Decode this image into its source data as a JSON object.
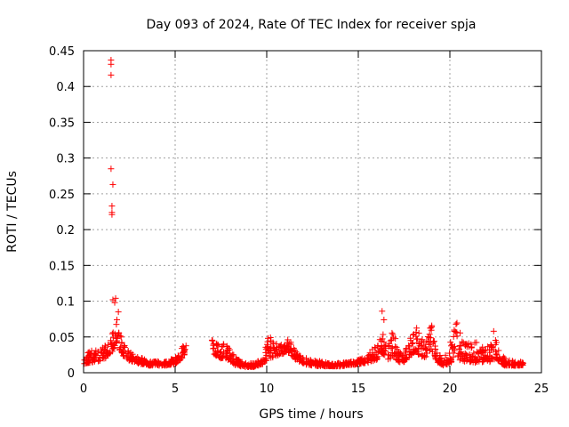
{
  "chart_data": {
    "type": "scatter",
    "title": "Day 093 of 2024, Rate Of TEC Index for receiver spja",
    "xlabel": "GPS time / hours",
    "ylabel": "ROTI / TECUs",
    "xlim": [
      0,
      25
    ],
    "ylim": [
      0,
      0.45
    ],
    "x_ticks": [
      0,
      5,
      10,
      15,
      20,
      25
    ],
    "y_ticks": [
      0,
      0.05,
      0.1,
      0.15,
      0.2,
      0.25,
      0.3,
      0.35,
      0.4,
      0.45
    ],
    "x_tick_labels": [
      "0",
      "5",
      "10",
      "15",
      "20",
      "25"
    ],
    "y_tick_labels": [
      "0",
      "0.05",
      "0.1",
      "0.15",
      "0.2",
      "0.25",
      "0.3",
      "0.35",
      "0.4",
      "0.45"
    ],
    "grid": true,
    "marker": "+",
    "marker_color": "#ff0000",
    "outliers": [
      [
        1.5,
        0.437
      ],
      [
        1.5,
        0.431
      ],
      [
        1.5,
        0.416
      ],
      [
        1.5,
        0.285
      ],
      [
        1.6,
        0.263
      ],
      [
        1.55,
        0.233
      ],
      [
        1.55,
        0.224
      ],
      [
        1.55,
        0.221
      ],
      [
        1.6,
        0.102
      ],
      [
        1.75,
        0.104
      ],
      [
        1.7,
        0.098
      ],
      [
        16.3,
        0.086
      ],
      [
        16.4,
        0.074
      ],
      [
        1.9,
        0.085
      ]
    ],
    "envelope": [
      [
        0.0,
        0.012,
        0.022
      ],
      [
        0.3,
        0.014,
        0.03
      ],
      [
        0.6,
        0.015,
        0.032
      ],
      [
        0.9,
        0.016,
        0.034
      ],
      [
        1.2,
        0.02,
        0.038
      ],
      [
        1.4,
        0.025,
        0.045
      ],
      [
        1.6,
        0.03,
        0.06
      ],
      [
        1.8,
        0.04,
        0.078
      ],
      [
        2.0,
        0.03,
        0.055
      ],
      [
        2.2,
        0.022,
        0.04
      ],
      [
        2.5,
        0.016,
        0.03
      ],
      [
        3.0,
        0.013,
        0.022
      ],
      [
        3.5,
        0.01,
        0.018
      ],
      [
        4.0,
        0.01,
        0.016
      ],
      [
        4.5,
        0.01,
        0.016
      ],
      [
        5.0,
        0.012,
        0.022
      ],
      [
        5.3,
        0.018,
        0.032
      ],
      [
        5.6,
        0.028,
        0.048
      ],
      [
        7.0,
        0.028,
        0.05
      ],
      [
        7.3,
        0.022,
        0.04
      ],
      [
        7.7,
        0.018,
        0.04
      ],
      [
        8.0,
        0.015,
        0.035
      ],
      [
        8.3,
        0.01,
        0.02
      ],
      [
        8.8,
        0.008,
        0.014
      ],
      [
        9.3,
        0.008,
        0.013
      ],
      [
        9.8,
        0.012,
        0.02
      ],
      [
        10.1,
        0.02,
        0.058
      ],
      [
        10.4,
        0.022,
        0.04
      ],
      [
        10.8,
        0.026,
        0.042
      ],
      [
        11.2,
        0.028,
        0.048
      ],
      [
        11.6,
        0.018,
        0.03
      ],
      [
        12.0,
        0.012,
        0.022
      ],
      [
        12.5,
        0.01,
        0.018
      ],
      [
        13.0,
        0.009,
        0.016
      ],
      [
        13.5,
        0.009,
        0.014
      ],
      [
        14.0,
        0.009,
        0.014
      ],
      [
        14.5,
        0.01,
        0.015
      ],
      [
        15.0,
        0.012,
        0.018
      ],
      [
        15.5,
        0.014,
        0.025
      ],
      [
        16.0,
        0.018,
        0.04
      ],
      [
        16.3,
        0.025,
        0.058
      ],
      [
        16.6,
        0.018,
        0.04
      ],
      [
        16.9,
        0.022,
        0.062
      ],
      [
        17.2,
        0.014,
        0.03
      ],
      [
        17.5,
        0.015,
        0.028
      ],
      [
        17.8,
        0.022,
        0.05
      ],
      [
        18.1,
        0.03,
        0.07
      ],
      [
        18.4,
        0.02,
        0.05
      ],
      [
        18.7,
        0.022,
        0.045
      ],
      [
        19.0,
        0.03,
        0.072
      ],
      [
        19.3,
        0.015,
        0.03
      ],
      [
        19.6,
        0.01,
        0.02
      ],
      [
        19.9,
        0.012,
        0.03
      ],
      [
        20.1,
        0.015,
        0.055
      ],
      [
        20.4,
        0.02,
        0.072
      ],
      [
        20.7,
        0.015,
        0.045
      ],
      [
        21.0,
        0.015,
        0.042
      ],
      [
        21.3,
        0.014,
        0.04
      ],
      [
        21.6,
        0.015,
        0.05
      ],
      [
        21.9,
        0.014,
        0.035
      ],
      [
        22.2,
        0.015,
        0.045
      ],
      [
        22.4,
        0.016,
        0.062
      ],
      [
        22.7,
        0.012,
        0.03
      ],
      [
        23.0,
        0.01,
        0.02
      ],
      [
        23.5,
        0.01,
        0.016
      ],
      [
        24.0,
        0.01,
        0.015
      ]
    ]
  }
}
